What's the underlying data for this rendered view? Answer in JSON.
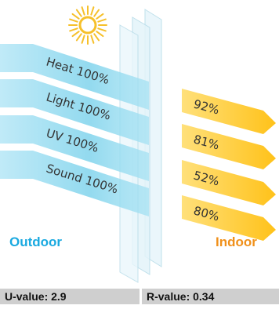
{
  "sun_icon": "sun-icon",
  "rows": [
    {
      "in_label": "Heat 100%",
      "out_label": "92%"
    },
    {
      "in_label": "Light 100%",
      "out_label": "81%"
    },
    {
      "in_label": "UV 100%",
      "out_label": "52%"
    },
    {
      "in_label": "Sound 100%",
      "out_label": "80%"
    }
  ],
  "sides": {
    "outdoor": "Outdoor",
    "indoor": "Indoor"
  },
  "values": {
    "u_value": "U-value: 2.9",
    "r_value": "R-value: 0.34"
  },
  "colors": {
    "outdoor": "#19a9e0",
    "indoor": "#f0901a",
    "incoming_band": "#8fd8ee",
    "outgoing_band": "#ffcf3a",
    "sun": "#f6c02a",
    "glass": "#dff2f8",
    "table": "#cfcfcf"
  }
}
